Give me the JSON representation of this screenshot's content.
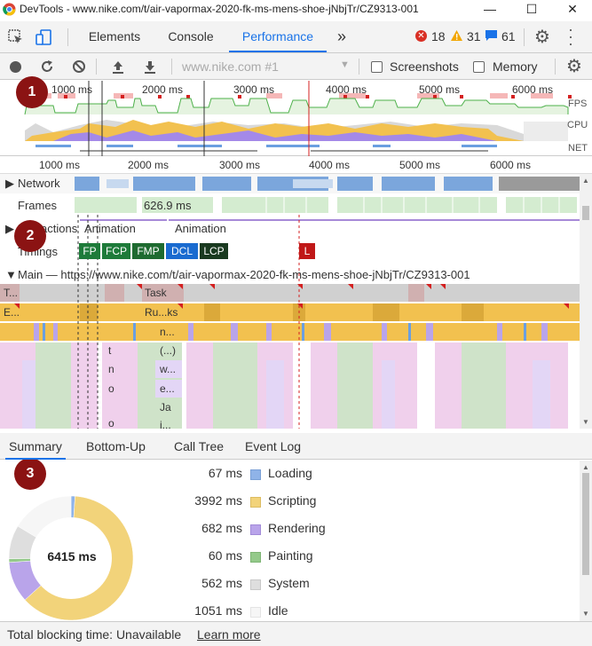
{
  "window": {
    "title": "DevTools - www.nike.com/t/air-vapormax-2020-fk-ms-mens-shoe-jNbjTr/CZ9313-001"
  },
  "tabs": [
    {
      "label": "Elements"
    },
    {
      "label": "Console"
    },
    {
      "label": "Performance"
    }
  ],
  "more_tabs": "»",
  "counts": {
    "errors": "18",
    "warnings": "31",
    "messages": "61"
  },
  "toolbar": {
    "profile_select": "www.nike.com #1",
    "screenshots_label": "Screenshots",
    "memory_label": "Memory"
  },
  "overview": {
    "ticks": [
      "1000 ms",
      "2000 ms",
      "3000 ms",
      "4000 ms",
      "5000 ms",
      "6000 ms"
    ],
    "labels": {
      "fps": "FPS",
      "cpu": "CPU",
      "net": "NET"
    }
  },
  "ruler": {
    "ticks": [
      "1000 ms",
      "2000 ms",
      "3000 ms",
      "4000 ms",
      "5000 ms",
      "6000 ms"
    ]
  },
  "tracks": {
    "network": "Network",
    "frames": "Frames",
    "frame_time": "626.9 ms",
    "interactions": "Interactions",
    "animation1": "Animation",
    "animation2": "Animation",
    "timings": "Timings",
    "markers": [
      {
        "label": "FP",
        "color": "#1e7b3a"
      },
      {
        "label": "FCP",
        "color": "#1e7b3a"
      },
      {
        "label": "FMP",
        "color": "#1e6b30"
      },
      {
        "label": "DCL",
        "color": "#1a6bd0"
      },
      {
        "label": "LCP",
        "color": "#1a3a20"
      },
      {
        "label": "L",
        "color": "#c01818"
      }
    ],
    "main": "Main — https://www.nike.com/t/air-vapormax-2020-fk-ms-mens-shoe-jNbjTr/CZ9313-001",
    "flame": {
      "t1": "T...",
      "task": "Task",
      "e1": "E...",
      "rks": "Ru...ks",
      "n": "n...",
      "paren": "(...)",
      "w": "w...",
      "e": "e...",
      "ja": "Ja",
      "j": "j...",
      "t": "t",
      "n2": "n",
      "o": "o",
      "o2": "o"
    }
  },
  "badges": [
    "1",
    "2",
    "3"
  ],
  "bottom_tabs": [
    {
      "label": "Summary"
    },
    {
      "label": "Bottom-Up"
    },
    {
      "label": "Call Tree"
    },
    {
      "label": "Event Log"
    }
  ],
  "summary": {
    "total": "6415 ms",
    "rows": [
      {
        "value": "67 ms",
        "name": "Loading",
        "color": "#8fb3e8"
      },
      {
        "value": "3992 ms",
        "name": "Scripting",
        "color": "#f2d37a"
      },
      {
        "value": "682 ms",
        "name": "Rendering",
        "color": "#b9a4ea"
      },
      {
        "value": "60 ms",
        "name": "Painting",
        "color": "#94c98a"
      },
      {
        "value": "562 ms",
        "name": "System",
        "color": "#dedede"
      },
      {
        "value": "1051 ms",
        "name": "Idle",
        "color": "#f6f6f6"
      }
    ],
    "donut_ms": [
      67,
      3992,
      682,
      60,
      562,
      1051
    ]
  },
  "footer": {
    "text": "Total blocking time: Unavailable",
    "link": "Learn more"
  }
}
